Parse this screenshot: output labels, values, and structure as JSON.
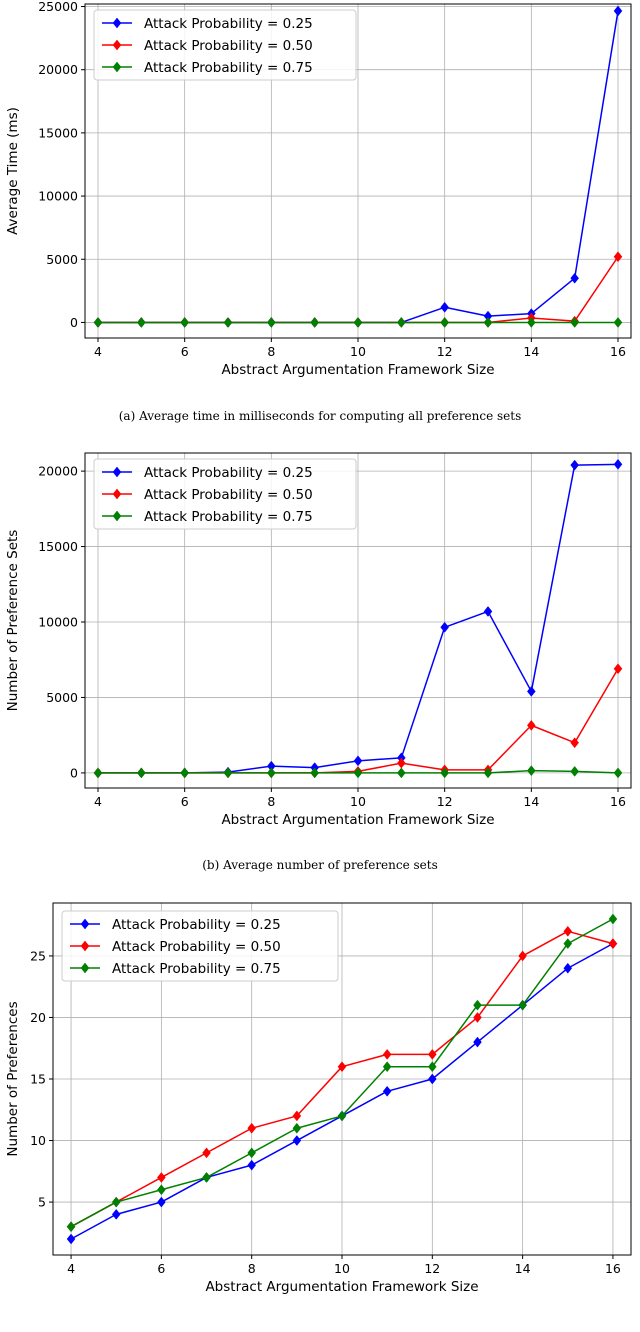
{
  "colors": {
    "series_0": "#0000ff",
    "series_1": "#ff0000",
    "series_2": "#008000",
    "grid": "#b0b0b0",
    "axes": "#000000"
  },
  "chart_data": [
    {
      "type": "line",
      "caption": "(a) Average time in milliseconds for computing all preference sets",
      "xlabel": "Abstract Argumentation Framework Size",
      "ylabel": "Average Time (ms)",
      "xlim": [
        3.7,
        16.3
      ],
      "ylim": [
        -1231,
        25200
      ],
      "x_ticks": [
        4,
        6,
        8,
        10,
        12,
        14,
        16
      ],
      "y_ticks": [
        0,
        5000,
        10000,
        15000,
        20000,
        25000
      ],
      "grid": true,
      "legend_position": "top-left",
      "x": [
        4,
        5,
        6,
        7,
        8,
        9,
        10,
        11,
        12,
        13,
        14,
        15,
        16
      ],
      "series": [
        {
          "name": "Attack Probability = 0.25",
          "values": [
            0,
            0,
            0,
            0,
            0,
            0,
            0,
            0,
            1200,
            500,
            700,
            3500,
            24650
          ]
        },
        {
          "name": "Attack Probability = 0.50",
          "values": [
            0,
            0,
            0,
            0,
            0,
            0,
            0,
            0,
            0,
            0,
            350,
            100,
            5200
          ]
        },
        {
          "name": "Attack Probability = 0.75",
          "values": [
            0,
            0,
            0,
            0,
            0,
            0,
            0,
            0,
            0,
            0,
            0,
            0,
            0
          ]
        }
      ]
    },
    {
      "type": "line",
      "caption": "(b) Average number of preference sets",
      "xlabel": "Abstract Argumentation Framework Size",
      "ylabel": "Number of Preference Sets",
      "xlim": [
        3.7,
        16.3
      ],
      "ylim": [
        -1000,
        21200
      ],
      "x_ticks": [
        4,
        6,
        8,
        10,
        12,
        14,
        16
      ],
      "y_ticks": [
        0,
        5000,
        10000,
        15000,
        20000
      ],
      "grid": true,
      "legend_position": "top-left",
      "x": [
        4,
        5,
        6,
        7,
        8,
        9,
        10,
        11,
        12,
        13,
        14,
        15,
        16
      ],
      "series": [
        {
          "name": "Attack Probability = 0.25",
          "values": [
            0,
            0,
            0,
            50,
            450,
            350,
            800,
            1000,
            9650,
            10700,
            5400,
            20400,
            20450
          ]
        },
        {
          "name": "Attack Probability = 0.50",
          "values": [
            0,
            0,
            0,
            0,
            0,
            0,
            100,
            650,
            200,
            200,
            3150,
            2000,
            6900
          ]
        },
        {
          "name": "Attack Probability = 0.75",
          "values": [
            0,
            0,
            0,
            0,
            0,
            0,
            0,
            0,
            0,
            0,
            150,
            100,
            0
          ]
        }
      ]
    },
    {
      "type": "line",
      "caption": "",
      "xlabel": "Abstract Argumentation Framework Size",
      "ylabel": "Number of Preferences",
      "xlim": [
        3.6,
        16.4
      ],
      "ylim": [
        0.7,
        29.3
      ],
      "x_ticks": [
        4,
        6,
        8,
        10,
        12,
        14,
        16
      ],
      "y_ticks": [
        5,
        10,
        15,
        20,
        25
      ],
      "grid": true,
      "legend_position": "top-left",
      "x": [
        4,
        5,
        6,
        7,
        8,
        9,
        10,
        11,
        12,
        13,
        14,
        15,
        16
      ],
      "series": [
        {
          "name": "Attack Probability = 0.25",
          "values": [
            2,
            4,
            5,
            7,
            8,
            10,
            12,
            14,
            15,
            18,
            21,
            24,
            26
          ]
        },
        {
          "name": "Attack Probability = 0.50",
          "values": [
            3,
            5,
            7,
            9,
            11,
            12,
            16,
            17,
            17,
            20,
            25,
            27,
            26
          ]
        },
        {
          "name": "Attack Probability = 0.75",
          "values": [
            3,
            5,
            6,
            7,
            9,
            11,
            12,
            16,
            16,
            21,
            21,
            26,
            28
          ]
        }
      ]
    }
  ]
}
